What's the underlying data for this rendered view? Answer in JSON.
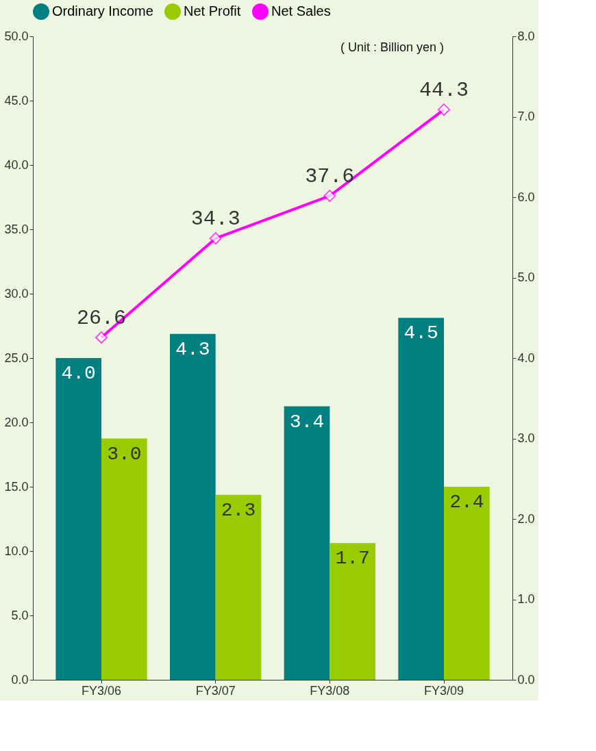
{
  "chart_data": {
    "type": "bar",
    "categories": [
      "FY3/06",
      "FY3/07",
      "FY3/08",
      "FY3/09"
    ],
    "series": [
      {
        "name": "Ordinary Income",
        "color": "#008080",
        "values": [
          4.0,
          4.3,
          3.4,
          4.5
        ],
        "value_labels": [
          "4.0",
          "4.3",
          "3.4",
          "4.5"
        ],
        "axis": "y2"
      },
      {
        "name": "Net Profit",
        "color": "#99cc00",
        "values": [
          3.0,
          2.3,
          1.7,
          2.4
        ],
        "value_labels": [
          "3.0",
          "2.3",
          "1.7",
          "2.4"
        ],
        "axis": "y2"
      },
      {
        "name": "Net Sales",
        "type": "line",
        "color": "#ff00ff",
        "values": [
          26.6,
          34.3,
          37.6,
          44.3
        ],
        "value_labels": [
          "26.6",
          "34.3",
          "37.6",
          "44.3"
        ],
        "marker": "diamond"
      }
    ],
    "ylim": [
      0,
      50
    ],
    "yticks": [
      {
        "value": 0,
        "label": "0.0"
      },
      {
        "value": 5,
        "label": "5.0"
      },
      {
        "value": 10,
        "label": "10.0"
      },
      {
        "value": 15,
        "label": "15.0"
      },
      {
        "value": 20,
        "label": "20.0"
      },
      {
        "value": 25,
        "label": "25.0"
      },
      {
        "value": 30,
        "label": "30.0"
      },
      {
        "value": 35,
        "label": "35.0"
      },
      {
        "value": 40,
        "label": "40.0"
      },
      {
        "value": 45,
        "label": "45.0"
      },
      {
        "value": 50,
        "label": "50.0"
      }
    ],
    "y2lim": [
      0,
      8
    ],
    "y2ticks": [
      {
        "value": 0,
        "label": "0.0"
      },
      {
        "value": 1,
        "label": "1.0"
      },
      {
        "value": 2,
        "label": "2.0"
      },
      {
        "value": 3,
        "label": "3.0"
      },
      {
        "value": 4,
        "label": "4.0"
      },
      {
        "value": 5,
        "label": "5.0"
      },
      {
        "value": 6,
        "label": "6.0"
      },
      {
        "value": 7,
        "label": "7.0"
      },
      {
        "value": 8,
        "label": "8.0"
      }
    ],
    "annotations": [
      "( Unit : Billion yen )"
    ],
    "legend": "top",
    "grid": false
  }
}
